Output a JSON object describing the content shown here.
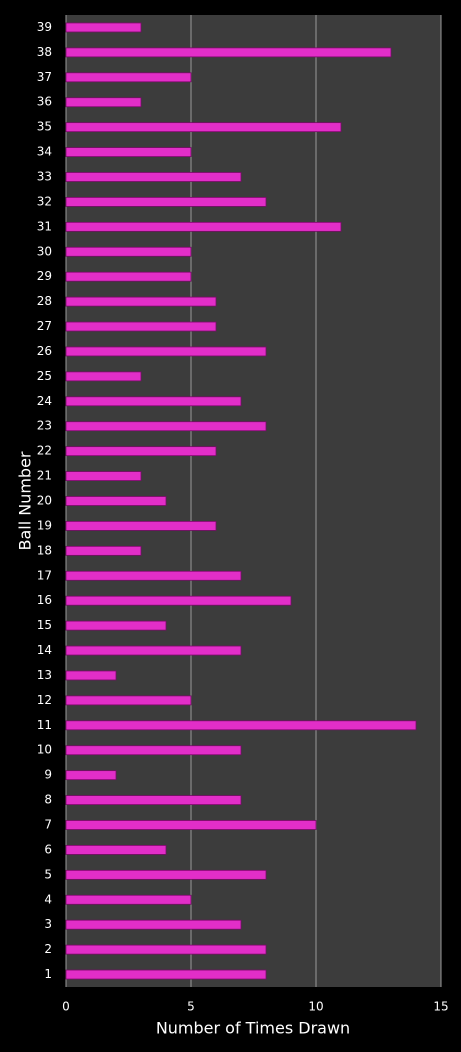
{
  "chart_data": {
    "type": "bar",
    "orientation": "horizontal",
    "x_label": "Number of Times Drawn",
    "y_label": "Ball Number",
    "categories": [
      "1",
      "2",
      "3",
      "4",
      "5",
      "6",
      "7",
      "8",
      "9",
      "10",
      "11",
      "12",
      "13",
      "14",
      "15",
      "16",
      "17",
      "18",
      "19",
      "20",
      "21",
      "22",
      "23",
      "24",
      "25",
      "26",
      "27",
      "28",
      "29",
      "30",
      "31",
      "32",
      "33",
      "34",
      "35",
      "36",
      "37",
      "38",
      "39"
    ],
    "values": [
      8,
      8,
      7,
      5,
      8,
      4,
      10,
      7,
      2,
      7,
      14,
      5,
      2,
      7,
      4,
      9,
      7,
      3,
      6,
      4,
      3,
      6,
      8,
      7,
      3,
      8,
      6,
      6,
      5,
      5,
      11,
      8,
      7,
      5,
      11,
      3,
      5,
      13,
      3
    ],
    "color": "#e22ec8",
    "xlim": [
      0,
      15
    ],
    "xticks": [
      0,
      5,
      10,
      15
    ],
    "grid": true
  }
}
